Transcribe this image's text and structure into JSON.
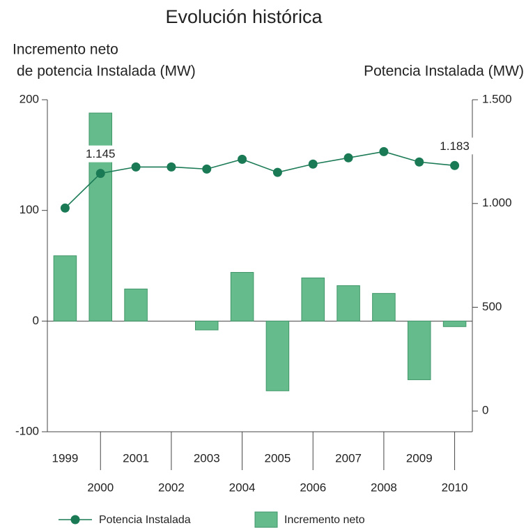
{
  "chart_data": {
    "type": "bar_line",
    "title": "Evolución histórica",
    "ylabel": [
      "Incremento neto",
      "de potencia Instalada (MW)"
    ],
    "y2label": "Potencia Instalada (MW)",
    "categories": [
      "1999",
      "2000",
      "2001",
      "2002",
      "2003",
      "2004",
      "2005",
      "2006",
      "2007",
      "2008",
      "2009",
      "2010"
    ],
    "series": [
      {
        "name": "Potencia Instalada",
        "type": "line",
        "axis": "y2",
        "color": "#1a7a55",
        "values": [
          978,
          1145,
          1176,
          1176,
          1166,
          1213,
          1150,
          1190,
          1220,
          1250,
          1200,
          1183
        ],
        "value_labels": [
          null,
          "1.145",
          null,
          null,
          null,
          null,
          null,
          null,
          null,
          null,
          null,
          "1.183"
        ]
      },
      {
        "name": "Incremento neto",
        "type": "bar",
        "axis": "y",
        "color": "#66bb8c",
        "values": [
          59,
          188,
          29,
          0,
          -8,
          44,
          -63,
          39,
          32,
          25,
          -53,
          -5
        ]
      }
    ],
    "ylim": [
      -100,
      200
    ],
    "yticks": [
      200,
      100,
      0,
      -100
    ],
    "y2lim": [
      -100,
      1500
    ],
    "y2ticks": [
      {
        "value": 1500,
        "label": "1.500"
      },
      {
        "value": 1000,
        "label": "1.000"
      },
      500,
      0
    ]
  }
}
